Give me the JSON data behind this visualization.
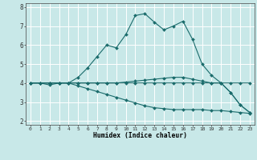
{
  "xlabel": "Humidex (Indice chaleur)",
  "background_color": "#c8e8e8",
  "grid_color": "#ffffff",
  "line_color": "#1a6b6b",
  "xlim": [
    -0.5,
    23.5
  ],
  "ylim": [
    1.8,
    8.2
  ],
  "yticks": [
    2,
    3,
    4,
    5,
    6,
    7,
    8
  ],
  "xticks": [
    0,
    1,
    2,
    3,
    4,
    5,
    6,
    7,
    8,
    9,
    10,
    11,
    12,
    13,
    14,
    15,
    16,
    17,
    18,
    19,
    20,
    21,
    22,
    23
  ],
  "lines": [
    {
      "x": [
        0,
        1,
        2,
        3,
        4,
        5,
        6,
        7,
        8,
        9,
        10,
        11,
        12,
        13,
        14,
        15,
        16,
        17,
        18,
        19,
        20,
        21,
        22,
        23
      ],
      "y": [
        4.0,
        4.0,
        3.9,
        4.0,
        4.0,
        4.3,
        4.8,
        5.4,
        6.0,
        5.85,
        6.55,
        7.55,
        7.65,
        7.2,
        6.8,
        7.0,
        7.25,
        6.3,
        5.0,
        4.4,
        4.0,
        3.5,
        2.85,
        2.45
      ]
    },
    {
      "x": [
        0,
        1,
        2,
        3,
        4,
        5,
        6,
        7,
        8,
        9,
        10,
        11,
        12,
        13,
        14,
        15,
        16,
        17,
        18,
        19,
        20,
        21,
        22,
        23
      ],
      "y": [
        4.0,
        4.0,
        4.0,
        4.0,
        4.0,
        4.0,
        4.0,
        4.0,
        4.0,
        4.0,
        4.05,
        4.1,
        4.15,
        4.2,
        4.25,
        4.3,
        4.3,
        4.2,
        4.1,
        4.0,
        4.0,
        4.0,
        4.0,
        4.0
      ]
    },
    {
      "x": [
        0,
        1,
        2,
        3,
        4,
        5,
        6,
        7,
        8,
        9,
        10,
        11,
        12,
        13,
        14,
        15,
        16,
        17,
        18,
        19,
        20,
        21,
        22,
        23
      ],
      "y": [
        4.0,
        4.0,
        4.0,
        4.0,
        4.0,
        4.0,
        4.0,
        4.0,
        4.0,
        4.0,
        4.0,
        4.0,
        4.0,
        4.0,
        4.0,
        4.0,
        4.0,
        4.0,
        4.0,
        4.0,
        4.0,
        3.5,
        2.85,
        2.45
      ]
    },
    {
      "x": [
        0,
        1,
        2,
        3,
        4,
        5,
        6,
        7,
        8,
        9,
        10,
        11,
        12,
        13,
        14,
        15,
        16,
        17,
        18,
        19,
        20,
        21,
        22,
        23
      ],
      "y": [
        4.0,
        4.0,
        4.0,
        4.0,
        4.0,
        3.85,
        3.7,
        3.55,
        3.4,
        3.25,
        3.1,
        2.95,
        2.8,
        2.7,
        2.65,
        2.6,
        2.6,
        2.6,
        2.6,
        2.55,
        2.55,
        2.5,
        2.45,
        2.4
      ]
    }
  ]
}
